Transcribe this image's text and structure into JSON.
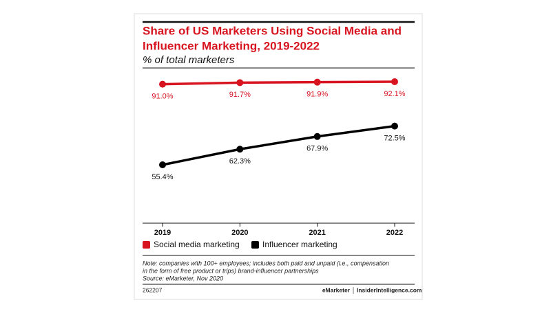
{
  "chart_data": {
    "type": "line",
    "title": [
      "Share of US Marketers Using Social Media and",
      "Influencer Marketing, 2019-2022"
    ],
    "subtitle": "% of total marketers",
    "categories": [
      "2019",
      "2020",
      "2021",
      "2022"
    ],
    "series": [
      {
        "name": "Social media marketing",
        "color": "#d7141f",
        "values": [
          91.0,
          91.7,
          91.9,
          92.1
        ],
        "value_labels": [
          "91.0%",
          "91.7%",
          "91.9%",
          "92.1%"
        ]
      },
      {
        "name": "Influencer marketing",
        "color": "#000000",
        "values": [
          55.4,
          62.3,
          67.9,
          72.5
        ],
        "value_labels": [
          "55.4%",
          "62.3%",
          "67.9%",
          "72.5%"
        ]
      }
    ],
    "legend": "bottom-left",
    "note": [
      "Note: companies with 100+ employees; includes both paid and unpaid (i.e., compensation",
      "in the form of free product or trips) brand-influencer partnerships"
    ],
    "source": "Source: eMarketer, Nov 2020",
    "chart_id": "262207",
    "brand": [
      "eMarketer",
      "InsiderIntelligence.com"
    ]
  }
}
